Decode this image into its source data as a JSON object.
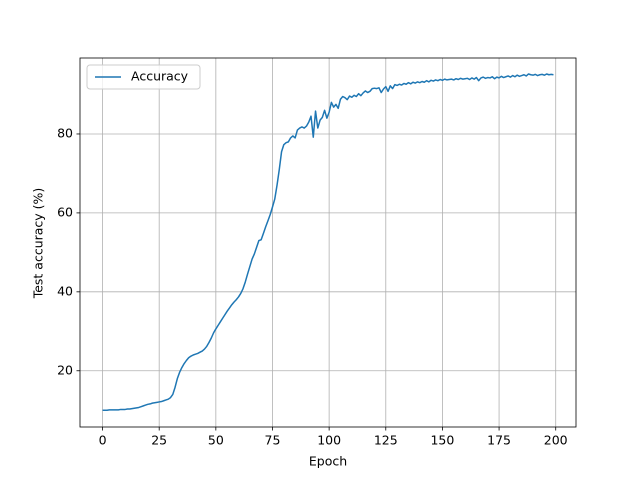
{
  "chart_data": {
    "type": "line",
    "x_label": "Epoch",
    "y_label": "Test accuracy (%)",
    "xlim": [
      -9.95,
      208.95
    ],
    "ylim": [
      5.75,
      99.25
    ],
    "xticks": [
      0,
      25,
      50,
      75,
      100,
      125,
      150,
      175,
      200
    ],
    "yticks": [
      20,
      40,
      60,
      80
    ],
    "grid": true,
    "legend": "upper left",
    "x": [
      0,
      1,
      2,
      3,
      4,
      5,
      6,
      7,
      8,
      9,
      10,
      11,
      12,
      13,
      14,
      15,
      16,
      17,
      18,
      19,
      20,
      21,
      22,
      23,
      24,
      25,
      26,
      27,
      28,
      29,
      30,
      31,
      32,
      33,
      34,
      35,
      36,
      37,
      38,
      39,
      40,
      41,
      42,
      43,
      44,
      45,
      46,
      47,
      48,
      49,
      50,
      51,
      52,
      53,
      54,
      55,
      56,
      57,
      58,
      59,
      60,
      61,
      62,
      63,
      64,
      65,
      66,
      67,
      68,
      69,
      70,
      71,
      72,
      73,
      74,
      75,
      76,
      77,
      78,
      79,
      80,
      81,
      82,
      83,
      84,
      85,
      86,
      87,
      88,
      89,
      90,
      91,
      92,
      93,
      94,
      95,
      96,
      97,
      98,
      99,
      100,
      101,
      102,
      103,
      104,
      105,
      106,
      107,
      108,
      109,
      110,
      111,
      112,
      113,
      114,
      115,
      116,
      117,
      118,
      119,
      120,
      121,
      122,
      123,
      124,
      125,
      126,
      127,
      128,
      129,
      130,
      131,
      132,
      133,
      134,
      135,
      136,
      137,
      138,
      139,
      140,
      141,
      142,
      143,
      144,
      145,
      146,
      147,
      148,
      149,
      150,
      151,
      152,
      153,
      154,
      155,
      156,
      157,
      158,
      159,
      160,
      161,
      162,
      163,
      164,
      165,
      166,
      167,
      168,
      169,
      170,
      171,
      172,
      173,
      174,
      175,
      176,
      177,
      178,
      179,
      180,
      181,
      182,
      183,
      184,
      185,
      186,
      187,
      188,
      189,
      190,
      191,
      192,
      193,
      194,
      195,
      196,
      197,
      198,
      199
    ],
    "series": [
      {
        "name": "Accuracy",
        "color": "#1f77b4",
        "values": [
          10.0,
          10.0,
          10.0,
          10.1,
          10.1,
          10.1,
          10.1,
          10.1,
          10.2,
          10.2,
          10.2,
          10.3,
          10.3,
          10.4,
          10.5,
          10.6,
          10.7,
          10.9,
          11.1,
          11.3,
          11.5,
          11.6,
          11.8,
          11.9,
          12.0,
          12.1,
          12.2,
          12.4,
          12.6,
          12.8,
          13.2,
          14.0,
          15.8,
          18.0,
          19.6,
          20.8,
          21.8,
          22.6,
          23.3,
          23.7,
          24.0,
          24.2,
          24.4,
          24.7,
          25.0,
          25.5,
          26.2,
          27.2,
          28.3,
          29.6,
          30.6,
          31.5,
          32.4,
          33.3,
          34.2,
          35.1,
          35.9,
          36.7,
          37.4,
          38.0,
          38.7,
          39.6,
          40.8,
          42.5,
          44.5,
          46.4,
          48.3,
          49.6,
          51.3,
          53.0,
          53.2,
          54.8,
          56.5,
          58.0,
          59.6,
          61.5,
          63.5,
          67.0,
          71.0,
          75.5,
          77.3,
          77.8,
          78.0,
          79.0,
          79.5,
          79.0,
          81.0,
          81.5,
          81.8,
          81.5,
          82.0,
          83.0,
          84.5,
          79.2,
          85.8,
          81.5,
          83.5,
          84.2,
          86.0,
          84.0,
          85.5,
          88.0,
          86.8,
          87.5,
          86.5,
          88.8,
          89.5,
          89.2,
          88.7,
          89.6,
          89.3,
          89.8,
          89.5,
          90.2,
          89.7,
          90.4,
          90.9,
          90.5,
          90.8,
          91.5,
          91.6,
          91.5,
          91.7,
          90.5,
          91.4,
          92.0,
          90.8,
          92.2,
          91.5,
          92.5,
          92.3,
          92.6,
          92.4,
          92.8,
          92.6,
          93.0,
          92.7,
          93.1,
          92.9,
          93.2,
          93.0,
          93.3,
          93.1,
          93.5,
          93.2,
          93.6,
          93.4,
          93.7,
          93.5,
          93.8,
          93.6,
          93.9,
          93.7,
          93.8,
          93.9,
          93.7,
          94.0,
          93.8,
          94.1,
          93.9,
          94.0,
          94.1,
          93.8,
          94.2,
          93.9,
          94.3,
          93.5,
          94.2,
          94.4,
          94.1,
          94.3,
          94.2,
          94.5,
          94.0,
          94.4,
          94.2,
          94.6,
          94.3,
          94.5,
          94.7,
          94.4,
          94.8,
          94.5,
          94.9,
          94.6,
          94.8,
          95.0,
          94.7,
          95.2,
          95.0,
          94.9,
          95.1,
          94.8,
          95.0,
          95.1,
          94.9,
          95.2,
          95.0,
          95.1,
          95.0
        ]
      }
    ]
  }
}
